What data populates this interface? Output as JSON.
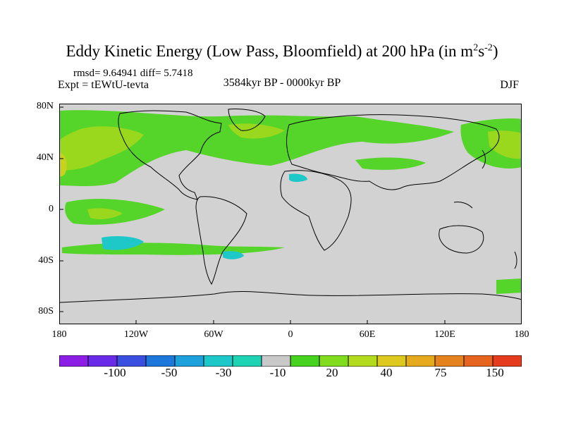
{
  "header": {
    "title_main": "Eddy Kinetic Energy (Low Pass, Bloomfield) at 200 hPa (in m",
    "title_sup1": "2",
    "title_mid": "s",
    "title_sup2": "-2",
    "title_end": ")",
    "stats": "rmsd= 9.64941 diff= 5.7418",
    "experiment": "Expt = tEWtU-tevta",
    "period": "3584kyr BP - 0000kyr BP",
    "season": "DJF"
  },
  "axes": {
    "lat_ticks": [
      "80N",
      "40N",
      "0",
      "40S",
      "80S"
    ],
    "lon_ticks": [
      "180",
      "120W",
      "60W",
      "0",
      "60E",
      "120E",
      "180"
    ]
  },
  "colorbar": {
    "labels": [
      "-100",
      "-50",
      "-30",
      "-10",
      "20",
      "40",
      "75",
      "150"
    ],
    "colors": [
      "#8c1ee6",
      "#6a2be8",
      "#3a4fe0",
      "#1e78dc",
      "#1ea0dc",
      "#1ec8c8",
      "#1ed2b4",
      "#c8c8c8",
      "#46d21e",
      "#82dc1e",
      "#b4dc1e",
      "#dcc81e",
      "#e6aa1e",
      "#e6821e",
      "#e6641e",
      "#e63c1e"
    ]
  },
  "map_colors": {
    "background": "#d2d2d2",
    "level_20": "#55d42a",
    "level_40": "#9ad81e",
    "level_75": "#c8d21e",
    "level_neg_30": "#1ec8c8",
    "coast": "#000000"
  }
}
